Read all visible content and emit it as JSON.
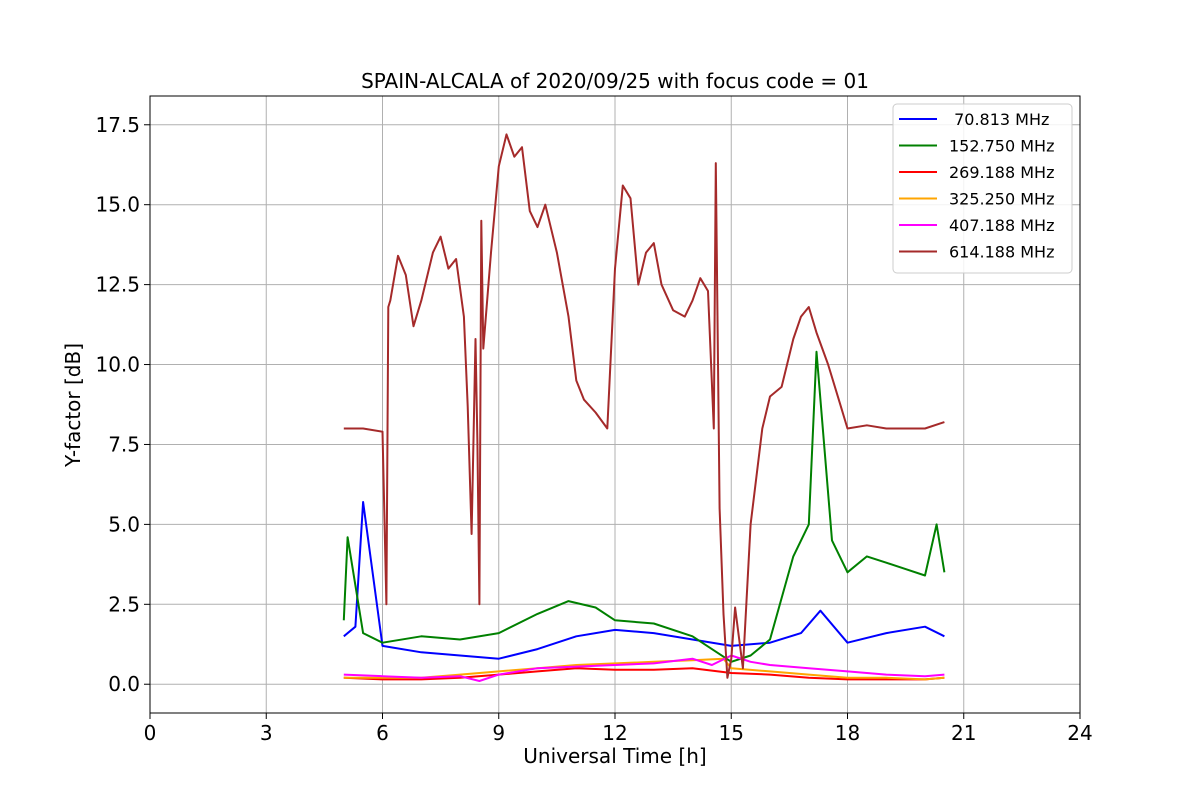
{
  "chart_data": {
    "type": "line",
    "title": "SPAIN-ALCALA of 2020/09/25 with focus code = 01",
    "xlabel": "Universal Time [h]",
    "ylabel": "Y-factor [dB]",
    "xlim": [
      0,
      24
    ],
    "ylim": [
      -0.9,
      18.4
    ],
    "xticks": [
      0,
      3,
      6,
      9,
      12,
      15,
      18,
      21,
      24
    ],
    "xtick_labels": [
      "0",
      "3",
      "6",
      "9",
      "12",
      "15",
      "18",
      "21",
      "24"
    ],
    "yticks": [
      0.0,
      2.5,
      5.0,
      7.5,
      10.0,
      12.5,
      15.0,
      17.5
    ],
    "ytick_labels": [
      "0.0",
      "2.5",
      "5.0",
      "7.5",
      "10.0",
      "12.5",
      "15.0",
      "17.5"
    ],
    "grid": true,
    "legend_position": "top-right",
    "series": [
      {
        "name": " 70.813 MHz",
        "color": "#0000ff",
        "x": [
          5.0,
          5.3,
          5.5,
          6.0,
          7.0,
          8.0,
          9.0,
          10.0,
          11.0,
          12.0,
          13.0,
          14.0,
          15.0,
          16.0,
          16.8,
          17.3,
          18.0,
          19.0,
          20.0,
          20.5
        ],
        "y": [
          1.5,
          1.8,
          5.7,
          1.2,
          1.0,
          0.9,
          0.8,
          1.1,
          1.5,
          1.7,
          1.6,
          1.4,
          1.2,
          1.3,
          1.6,
          2.3,
          1.3,
          1.6,
          1.8,
          1.5
        ]
      },
      {
        "name": "152.750 MHz",
        "color": "#008000",
        "x": [
          5.0,
          5.1,
          5.5,
          6.0,
          7.0,
          8.0,
          9.0,
          10.0,
          10.8,
          11.5,
          12.0,
          13.0,
          14.0,
          15.0,
          15.5,
          16.0,
          16.6,
          17.0,
          17.2,
          17.6,
          18.0,
          18.5,
          19.0,
          19.5,
          20.0,
          20.3,
          20.5
        ],
        "y": [
          2.0,
          4.6,
          1.6,
          1.3,
          1.5,
          1.4,
          1.6,
          2.2,
          2.6,
          2.4,
          2.0,
          1.9,
          1.5,
          0.7,
          0.9,
          1.4,
          4.0,
          5.0,
          10.4,
          4.5,
          3.5,
          4.0,
          3.8,
          3.6,
          3.4,
          5.0,
          3.5
        ]
      },
      {
        "name": "269.188 MHz",
        "color": "#ff0000",
        "x": [
          5.0,
          6.0,
          7.0,
          8.0,
          9.0,
          10.0,
          11.0,
          12.0,
          13.0,
          14.0,
          15.0,
          16.0,
          17.0,
          18.0,
          19.0,
          20.0,
          20.5
        ],
        "y": [
          0.2,
          0.15,
          0.15,
          0.2,
          0.3,
          0.4,
          0.5,
          0.45,
          0.45,
          0.5,
          0.35,
          0.3,
          0.2,
          0.15,
          0.15,
          0.15,
          0.2
        ]
      },
      {
        "name": "325.250 MHz",
        "color": "#ffa500",
        "x": [
          5.0,
          6.0,
          7.0,
          8.0,
          9.0,
          10.0,
          11.0,
          12.0,
          13.0,
          14.0,
          14.8,
          15.0,
          16.0,
          17.0,
          18.0,
          19.0,
          20.0,
          20.5
        ],
        "y": [
          0.2,
          0.2,
          0.2,
          0.3,
          0.4,
          0.5,
          0.6,
          0.65,
          0.7,
          0.75,
          0.8,
          0.5,
          0.4,
          0.3,
          0.2,
          0.2,
          0.15,
          0.2
        ]
      },
      {
        "name": "407.188 MHz",
        "color": "#ff00ff",
        "x": [
          5.0,
          6.0,
          7.0,
          8.0,
          8.5,
          9.0,
          10.0,
          11.0,
          12.0,
          13.0,
          14.0,
          14.5,
          15.0,
          15.5,
          16.0,
          17.0,
          18.0,
          19.0,
          20.0,
          20.5
        ],
        "y": [
          0.3,
          0.25,
          0.2,
          0.25,
          0.1,
          0.3,
          0.5,
          0.55,
          0.6,
          0.65,
          0.8,
          0.6,
          0.9,
          0.7,
          0.6,
          0.5,
          0.4,
          0.3,
          0.25,
          0.3
        ]
      },
      {
        "name": "614.188 MHz",
        "color": "#a52a2a",
        "x": [
          5.0,
          5.5,
          6.0,
          6.1,
          6.15,
          6.2,
          6.4,
          6.6,
          6.8,
          7.0,
          7.3,
          7.5,
          7.7,
          7.9,
          8.1,
          8.2,
          8.3,
          8.4,
          8.45,
          8.5,
          8.55,
          8.6,
          8.8,
          9.0,
          9.2,
          9.4,
          9.6,
          9.8,
          10.0,
          10.2,
          10.5,
          10.8,
          11.0,
          11.2,
          11.5,
          11.8,
          12.0,
          12.2,
          12.4,
          12.6,
          12.8,
          13.0,
          13.2,
          13.5,
          13.8,
          14.0,
          14.2,
          14.4,
          14.55,
          14.6,
          14.7,
          14.8,
          14.9,
          15.0,
          15.1,
          15.3,
          15.5,
          15.8,
          16.0,
          16.3,
          16.6,
          16.8,
          17.0,
          17.2,
          17.5,
          17.8,
          18.0,
          18.5,
          19.0,
          19.5,
          20.0,
          20.5
        ],
        "y": [
          8.0,
          8.0,
          7.9,
          2.5,
          11.8,
          12.0,
          13.4,
          12.8,
          11.2,
          12.0,
          13.5,
          14.0,
          13.0,
          13.3,
          11.5,
          8.7,
          4.7,
          10.8,
          7.6,
          2.5,
          14.5,
          10.5,
          13.5,
          16.2,
          17.2,
          16.5,
          16.8,
          14.8,
          14.3,
          15.0,
          13.5,
          11.5,
          9.5,
          8.9,
          8.5,
          8.0,
          13.0,
          15.6,
          15.2,
          12.5,
          13.5,
          13.8,
          12.5,
          11.7,
          11.5,
          12.0,
          12.7,
          12.3,
          8.0,
          16.3,
          5.5,
          2.2,
          0.2,
          0.8,
          2.4,
          0.5,
          5.0,
          8.0,
          9.0,
          9.3,
          10.8,
          11.5,
          11.8,
          11.0,
          10.0,
          8.8,
          8.0,
          8.1,
          8.0,
          8.0,
          8.0,
          8.2
        ]
      }
    ]
  }
}
